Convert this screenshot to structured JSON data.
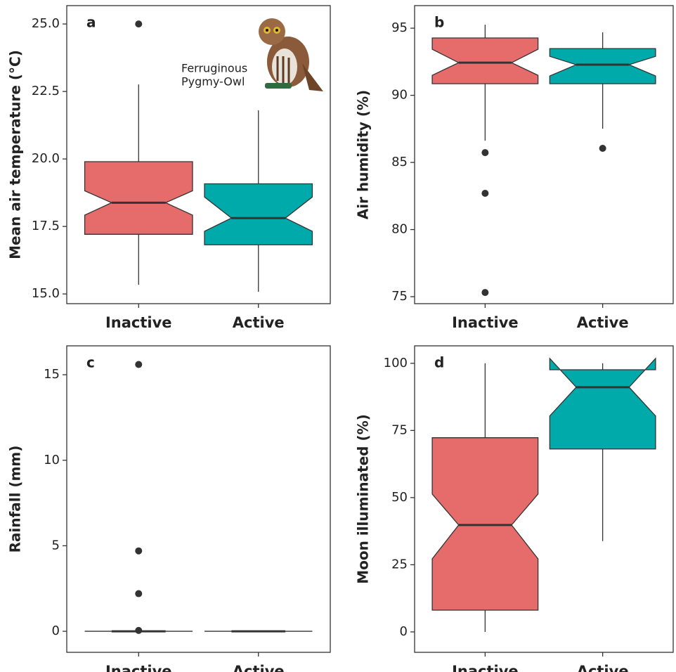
{
  "chart_data": [
    {
      "type": "boxplot",
      "panel_label": "a",
      "ylabel": "Mean air temperature (°C)",
      "annotation": [
        "Ferruginous",
        "Pygmy-Owl"
      ],
      "categories": [
        "Inactive",
        "Active"
      ],
      "colors": [
        "#e66b6b",
        "#00a9aa"
      ],
      "boxes": [
        {
          "whisker_low": 15.34,
          "q1": 17.21,
          "notch_low": 17.92,
          "median": 18.38,
          "notch_high": 18.82,
          "q3": 19.9,
          "whisker_high": 22.76,
          "outliers": [
            25.0
          ]
        },
        {
          "whisker_low": 15.08,
          "q1": 16.82,
          "notch_low": 17.32,
          "median": 17.81,
          "notch_high": 18.59,
          "q3": 19.08,
          "whisker_high": 21.8,
          "outliers": []
        }
      ],
      "ylim": [
        14.64,
        25.68
      ],
      "yticks": [
        {
          "value": 15,
          "label": "15.0"
        },
        17.5,
        {
          "value": 20,
          "label": "20.0"
        },
        22.5,
        {
          "value": 25,
          "label": "25.0"
        }
      ]
    },
    {
      "type": "boxplot",
      "panel_label": "b",
      "ylabel": "Air humidity (%)",
      "categories": [
        "Inactive",
        "Active"
      ],
      "colors": [
        "#e66b6b",
        "#00a9aa"
      ],
      "boxes": [
        {
          "whisker_low": 86.62,
          "q1": 90.86,
          "notch_low": 91.49,
          "median": 92.43,
          "notch_high": 93.43,
          "q3": 94.27,
          "whisker_high": 95.26,
          "outliers": [
            85.73,
            82.7,
            75.31
          ]
        },
        {
          "whisker_low": 87.51,
          "q1": 90.86,
          "notch_low": 91.44,
          "median": 92.28,
          "notch_high": 92.9,
          "q3": 93.48,
          "whisker_high": 94.69,
          "outliers": [
            86.05
          ]
        }
      ],
      "ylim": [
        74.48,
        96.68
      ],
      "yticks": [
        75,
        80,
        85,
        90,
        95
      ]
    },
    {
      "type": "boxplot",
      "panel_label": "c",
      "ylabel": "Rainfall (mm)",
      "categories": [
        "Inactive",
        "Active"
      ],
      "colors": [
        "#e66b6b",
        "#00a9aa"
      ],
      "boxes": [
        {
          "whisker_low": 0,
          "q1": 0,
          "notch_low": 0,
          "median": 0,
          "notch_high": 0,
          "q3": 0,
          "whisker_high": 0,
          "outliers": [
            15.6,
            4.7,
            2.2,
            0.05
          ]
        },
        {
          "whisker_low": 0,
          "q1": 0,
          "notch_low": 0,
          "median": 0,
          "notch_high": 0,
          "q3": 0,
          "whisker_high": 0,
          "outliers": []
        }
      ],
      "ylim": [
        -1.23,
        16.69
      ],
      "yticks": [
        0,
        5,
        10,
        15
      ]
    },
    {
      "type": "boxplot",
      "panel_label": "d",
      "ylabel": "Moon illuminated (%)",
      "categories": [
        "Inactive",
        "Active"
      ],
      "colors": [
        "#e66b6b",
        "#00a9aa"
      ],
      "boxes": [
        {
          "whisker_low": 0,
          "q1": 8.1,
          "notch_low": 27.2,
          "median": 39.8,
          "notch_high": 51.3,
          "q3": 72.3,
          "whisker_high": 100,
          "outliers": []
        },
        {
          "whisker_low": 33.8,
          "q1": 68.1,
          "notch_low": 80.4,
          "median": 91.1,
          "notch_high": 101.8,
          "q3": 97.6,
          "whisker_high": 100,
          "outliers": []
        }
      ],
      "ylim": [
        -7.6,
        106.5
      ],
      "yticks": [
        0,
        25,
        50,
        75,
        100
      ]
    }
  ]
}
